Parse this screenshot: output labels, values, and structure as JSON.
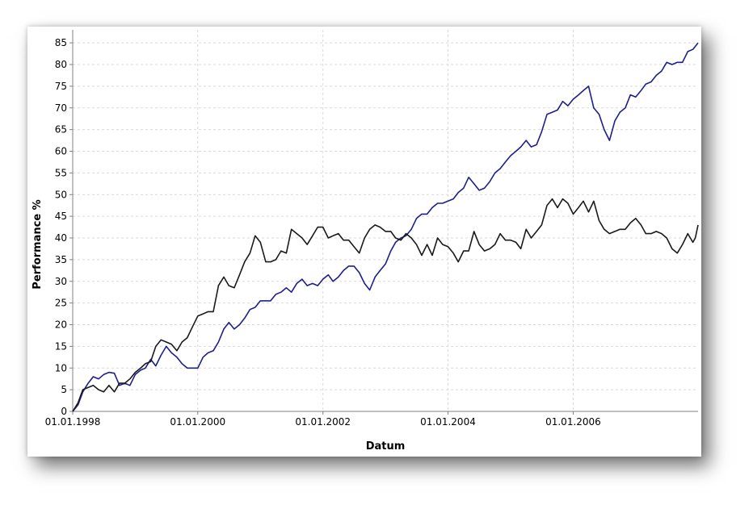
{
  "colors": {
    "background": "#ffffff",
    "grid": "#d9d9d9",
    "axis": "#808080",
    "series_blue": "#1e1e8c",
    "series_black": "#1a1a1a"
  },
  "chart_data": {
    "type": "line",
    "title": "",
    "xlabel": "Datum",
    "ylabel": "Performance %",
    "ylim": [
      0,
      88
    ],
    "xlim": [
      "1998-01-01",
      "2007-12-31"
    ],
    "grid": true,
    "legend": "none",
    "yticks": [
      0,
      5,
      10,
      15,
      20,
      25,
      30,
      35,
      40,
      45,
      50,
      55,
      60,
      65,
      70,
      75,
      80,
      85
    ],
    "xticks": [
      {
        "date": "1998-01-01",
        "label": "01.01.1998"
      },
      {
        "date": "2000-01-01",
        "label": "01.01.2000"
      },
      {
        "date": "2002-01-01",
        "label": "01.01.2002"
      },
      {
        "date": "2004-01-01",
        "label": "01.01.2004"
      },
      {
        "date": "2006-01-01",
        "label": "01.01.2006"
      }
    ],
    "series": [
      {
        "color": "#1e1e8c",
        "points": [
          [
            "1998-01-01",
            0
          ],
          [
            "1998-02-01",
            1.5
          ],
          [
            "1998-03-01",
            4.5
          ],
          [
            "1998-04-01",
            6.5
          ],
          [
            "1998-05-01",
            8
          ],
          [
            "1998-06-01",
            7.5
          ],
          [
            "1998-07-01",
            8.5
          ],
          [
            "1998-08-01",
            9
          ],
          [
            "1998-09-01",
            8.8
          ],
          [
            "1998-10-01",
            6
          ],
          [
            "1998-11-01",
            6.5
          ],
          [
            "1998-12-01",
            6
          ],
          [
            "1999-01-01",
            8.5
          ],
          [
            "1999-02-01",
            9.5
          ],
          [
            "1999-03-01",
            10
          ],
          [
            "1999-04-01",
            12
          ],
          [
            "1999-05-01",
            10.5
          ],
          [
            "1999-06-01",
            13
          ],
          [
            "1999-07-01",
            15
          ],
          [
            "1999-08-01",
            13.5
          ],
          [
            "1999-09-01",
            12.5
          ],
          [
            "1999-10-01",
            11
          ],
          [
            "1999-11-01",
            10
          ],
          [
            "1999-12-01",
            10
          ],
          [
            "2000-01-01",
            10
          ],
          [
            "2000-02-01",
            12.5
          ],
          [
            "2000-03-01",
            13.5
          ],
          [
            "2000-04-01",
            14
          ],
          [
            "2000-05-01",
            16
          ],
          [
            "2000-06-01",
            19
          ],
          [
            "2000-07-01",
            20.5
          ],
          [
            "2000-08-01",
            19
          ],
          [
            "2000-09-01",
            20
          ],
          [
            "2000-10-01",
            21.5
          ],
          [
            "2000-11-01",
            23.5
          ],
          [
            "2000-12-01",
            24
          ],
          [
            "2001-01-01",
            25.5
          ],
          [
            "2001-02-01",
            25.5
          ],
          [
            "2001-03-01",
            25.5
          ],
          [
            "2001-04-01",
            27
          ],
          [
            "2001-05-01",
            27.5
          ],
          [
            "2001-06-01",
            28.5
          ],
          [
            "2001-07-01",
            27.5
          ],
          [
            "2001-08-01",
            29.5
          ],
          [
            "2001-09-01",
            30.5
          ],
          [
            "2001-10-01",
            29
          ],
          [
            "2001-11-01",
            29.5
          ],
          [
            "2001-12-01",
            29
          ],
          [
            "2002-01-01",
            30.5
          ],
          [
            "2002-02-01",
            31.5
          ],
          [
            "2002-03-01",
            30
          ],
          [
            "2002-04-01",
            31
          ],
          [
            "2002-05-01",
            32.5
          ],
          [
            "2002-06-01",
            33.5
          ],
          [
            "2002-07-01",
            33.5
          ],
          [
            "2002-08-01",
            32
          ],
          [
            "2002-09-01",
            29.5
          ],
          [
            "2002-10-01",
            28
          ],
          [
            "2002-11-01",
            31
          ],
          [
            "2002-12-01",
            32.5
          ],
          [
            "2003-01-01",
            34
          ],
          [
            "2003-02-01",
            37
          ],
          [
            "2003-03-01",
            39
          ],
          [
            "2003-04-01",
            40
          ],
          [
            "2003-05-01",
            40.5
          ],
          [
            "2003-06-01",
            42
          ],
          [
            "2003-07-01",
            44.5
          ],
          [
            "2003-08-01",
            45.5
          ],
          [
            "2003-09-01",
            45.5
          ],
          [
            "2003-10-01",
            47
          ],
          [
            "2003-11-01",
            48
          ],
          [
            "2003-12-01",
            48
          ],
          [
            "2004-01-01",
            48.5
          ],
          [
            "2004-02-01",
            49
          ],
          [
            "2004-03-01",
            50.5
          ],
          [
            "2004-04-01",
            51.5
          ],
          [
            "2004-05-01",
            54
          ],
          [
            "2004-06-01",
            52.5
          ],
          [
            "2004-07-01",
            51
          ],
          [
            "2004-08-01",
            51.5
          ],
          [
            "2004-09-01",
            53
          ],
          [
            "2004-10-01",
            55
          ],
          [
            "2004-11-01",
            56
          ],
          [
            "2004-12-01",
            57.5
          ],
          [
            "2005-01-01",
            59
          ],
          [
            "2005-02-01",
            60
          ],
          [
            "2005-03-01",
            61
          ],
          [
            "2005-04-01",
            62.5
          ],
          [
            "2005-05-01",
            61
          ],
          [
            "2005-06-01",
            61.5
          ],
          [
            "2005-07-01",
            64.5
          ],
          [
            "2005-08-01",
            68.5
          ],
          [
            "2005-09-01",
            69
          ],
          [
            "2005-10-01",
            69.5
          ],
          [
            "2005-11-01",
            71.5
          ],
          [
            "2005-12-01",
            70.5
          ],
          [
            "2006-01-01",
            72
          ],
          [
            "2006-02-01",
            73
          ],
          [
            "2006-03-01",
            74
          ],
          [
            "2006-04-01",
            75
          ],
          [
            "2006-05-01",
            70
          ],
          [
            "2006-06-01",
            68.5
          ],
          [
            "2006-07-01",
            65
          ],
          [
            "2006-08-01",
            62.5
          ],
          [
            "2006-09-01",
            67
          ],
          [
            "2006-10-01",
            69
          ],
          [
            "2006-11-01",
            70
          ],
          [
            "2006-12-01",
            73
          ],
          [
            "2007-01-01",
            72.5
          ],
          [
            "2007-02-01",
            74
          ],
          [
            "2007-03-01",
            75.5
          ],
          [
            "2007-04-01",
            76
          ],
          [
            "2007-05-01",
            77.5
          ],
          [
            "2007-06-01",
            78.5
          ],
          [
            "2007-07-01",
            80.5
          ],
          [
            "2007-08-01",
            80
          ],
          [
            "2007-09-01",
            80.5
          ],
          [
            "2007-10-01",
            80.5
          ],
          [
            "2007-11-01",
            83
          ],
          [
            "2007-12-01",
            83.5
          ],
          [
            "2007-12-31",
            85
          ]
        ]
      },
      {
        "color": "#1a1a1a",
        "points": [
          [
            "1998-01-01",
            0
          ],
          [
            "1998-02-01",
            2
          ],
          [
            "1998-03-01",
            5
          ],
          [
            "1998-04-01",
            5.5
          ],
          [
            "1998-05-01",
            6
          ],
          [
            "1998-06-01",
            5
          ],
          [
            "1998-07-01",
            4.5
          ],
          [
            "1998-08-01",
            6
          ],
          [
            "1998-09-01",
            4.5
          ],
          [
            "1998-10-01",
            6.5
          ],
          [
            "1998-11-01",
            6.5
          ],
          [
            "1998-12-01",
            7.5
          ],
          [
            "1999-01-01",
            9
          ],
          [
            "1999-02-01",
            10
          ],
          [
            "1999-03-01",
            11
          ],
          [
            "1999-04-01",
            11.5
          ],
          [
            "1999-05-01",
            15
          ],
          [
            "1999-06-01",
            16.5
          ],
          [
            "1999-07-01",
            16
          ],
          [
            "1999-08-01",
            15.5
          ],
          [
            "1999-09-01",
            14
          ],
          [
            "1999-10-01",
            16
          ],
          [
            "1999-11-01",
            17
          ],
          [
            "1999-12-01",
            19.5
          ],
          [
            "2000-01-01",
            22
          ],
          [
            "2000-02-01",
            22.5
          ],
          [
            "2000-03-01",
            23
          ],
          [
            "2000-04-01",
            23
          ],
          [
            "2000-05-01",
            29
          ],
          [
            "2000-06-01",
            31
          ],
          [
            "2000-07-01",
            29
          ],
          [
            "2000-08-01",
            28.5
          ],
          [
            "2000-09-01",
            31.5
          ],
          [
            "2000-10-01",
            34.5
          ],
          [
            "2000-11-01",
            36.5
          ],
          [
            "2000-12-01",
            40.5
          ],
          [
            "2001-01-01",
            39
          ],
          [
            "2001-02-01",
            34.5
          ],
          [
            "2001-03-01",
            34.5
          ],
          [
            "2001-04-01",
            35
          ],
          [
            "2001-05-01",
            37
          ],
          [
            "2001-06-01",
            36.5
          ],
          [
            "2001-07-01",
            42
          ],
          [
            "2001-08-01",
            41
          ],
          [
            "2001-09-01",
            40
          ],
          [
            "2001-10-01",
            38.5
          ],
          [
            "2001-11-01",
            40.5
          ],
          [
            "2001-12-01",
            42.5
          ],
          [
            "2002-01-01",
            42.5
          ],
          [
            "2002-02-01",
            40
          ],
          [
            "2002-03-01",
            40.5
          ],
          [
            "2002-04-01",
            41
          ],
          [
            "2002-05-01",
            39.5
          ],
          [
            "2002-06-01",
            39.5
          ],
          [
            "2002-07-01",
            38
          ],
          [
            "2002-08-01",
            36.5
          ],
          [
            "2002-09-01",
            40
          ],
          [
            "2002-10-01",
            42
          ],
          [
            "2002-11-01",
            43
          ],
          [
            "2002-12-01",
            42.5
          ],
          [
            "2003-01-01",
            41.5
          ],
          [
            "2003-02-01",
            41.5
          ],
          [
            "2003-03-01",
            40
          ],
          [
            "2003-04-01",
            39.5
          ],
          [
            "2003-05-01",
            41
          ],
          [
            "2003-06-01",
            40
          ],
          [
            "2003-07-01",
            38.5
          ],
          [
            "2003-08-01",
            36
          ],
          [
            "2003-09-01",
            38.5
          ],
          [
            "2003-10-01",
            36
          ],
          [
            "2003-11-01",
            40
          ],
          [
            "2003-12-01",
            38.5
          ],
          [
            "2004-01-01",
            38
          ],
          [
            "2004-02-01",
            36.5
          ],
          [
            "2004-03-01",
            34.5
          ],
          [
            "2004-04-01",
            37
          ],
          [
            "2004-05-01",
            37
          ],
          [
            "2004-06-01",
            41.5
          ],
          [
            "2004-07-01",
            38.5
          ],
          [
            "2004-08-01",
            37
          ],
          [
            "2004-09-01",
            37.5
          ],
          [
            "2004-10-01",
            38.5
          ],
          [
            "2004-11-01",
            41
          ],
          [
            "2004-12-01",
            39.5
          ],
          [
            "2005-01-01",
            39.5
          ],
          [
            "2005-02-01",
            39
          ],
          [
            "2005-03-01",
            37.5
          ],
          [
            "2005-04-01",
            42
          ],
          [
            "2005-05-01",
            40
          ],
          [
            "2005-06-01",
            41.5
          ],
          [
            "2005-07-01",
            43
          ],
          [
            "2005-08-01",
            47.5
          ],
          [
            "2005-09-01",
            49
          ],
          [
            "2005-10-01",
            47
          ],
          [
            "2005-11-01",
            49
          ],
          [
            "2005-12-01",
            48
          ],
          [
            "2006-01-01",
            45.5
          ],
          [
            "2006-02-01",
            47
          ],
          [
            "2006-03-01",
            48.5
          ],
          [
            "2006-04-01",
            46
          ],
          [
            "2006-05-01",
            48.5
          ],
          [
            "2006-06-01",
            44
          ],
          [
            "2006-07-01",
            42
          ],
          [
            "2006-08-01",
            41
          ],
          [
            "2006-09-01",
            41.5
          ],
          [
            "2006-10-01",
            42
          ],
          [
            "2006-11-01",
            42
          ],
          [
            "2006-12-01",
            43.5
          ],
          [
            "2007-01-01",
            44.5
          ],
          [
            "2007-02-01",
            43
          ],
          [
            "2007-03-01",
            41
          ],
          [
            "2007-04-01",
            41
          ],
          [
            "2007-05-01",
            41.5
          ],
          [
            "2007-06-01",
            41
          ],
          [
            "2007-07-01",
            40
          ],
          [
            "2007-08-01",
            37.5
          ],
          [
            "2007-09-01",
            36.5
          ],
          [
            "2007-10-01",
            38.5
          ],
          [
            "2007-11-01",
            41
          ],
          [
            "2007-12-01",
            39
          ],
          [
            "2007-12-15",
            40
          ],
          [
            "2007-12-31",
            43
          ]
        ]
      }
    ]
  }
}
